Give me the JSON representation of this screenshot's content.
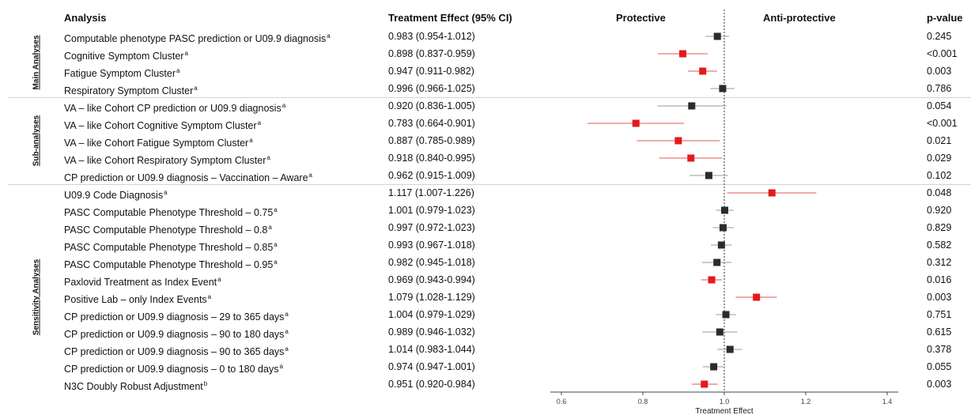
{
  "headers": {
    "analysis": "Analysis",
    "effect": "Treatment Effect (95% CI)",
    "protective": "Protective",
    "anti_protective": "Anti-protective",
    "pvalue": "p-value"
  },
  "sections": [
    {
      "label": "Main Analyses",
      "rows": [
        0,
        3
      ]
    },
    {
      "label": "Sub-analyses",
      "rows": [
        4,
        8
      ]
    },
    {
      "label": "Sensitivity Analyses",
      "rows": [
        9,
        21
      ]
    }
  ],
  "rows": [
    {
      "label": "Computable phenotype PASC prediction or U09.9 diagnosis",
      "sup": "a",
      "effect": "0.983 (0.954-1.012)",
      "p": "0.245"
    },
    {
      "label": "Cognitive Symptom Cluster",
      "sup": "a",
      "effect": "0.898 (0.837-0.959)",
      "p": "<0.001"
    },
    {
      "label": "Fatigue Symptom Cluster",
      "sup": "a",
      "effect": "0.947 (0.911-0.982)",
      "p": "0.003"
    },
    {
      "label": "Respiratory Symptom Cluster",
      "sup": "a",
      "effect": "0.996 (0.966-1.025)",
      "p": "0.786"
    },
    {
      "label": "VA – like Cohort CP prediction or U09.9 diagnosis",
      "sup": "a",
      "effect": "0.920 (0.836-1.005)",
      "p": "0.054"
    },
    {
      "label": "VA – like Cohort Cognitive Symptom Cluster",
      "sup": "a",
      "effect": "0.783 (0.664-0.901)",
      "p": "<0.001"
    },
    {
      "label": "VA – like Cohort Fatigue Symptom Cluster",
      "sup": "a",
      "effect": "0.887 (0.785-0.989)",
      "p": "0.021"
    },
    {
      "label": "VA – like Cohort Respiratory Symptom Cluster",
      "sup": "a",
      "effect": "0.918 (0.840-0.995)",
      "p": "0.029"
    },
    {
      "label": "CP prediction or U09.9 diagnosis – Vaccination – Aware",
      "sup": "a",
      "effect": "0.962 (0.915-1.009)",
      "p": "0.102"
    },
    {
      "label": "U09.9 Code Diagnosis",
      "sup": "a",
      "effect": "1.117 (1.007-1.226)",
      "p": "0.048"
    },
    {
      "label": "PASC Computable Phenotype Threshold – 0.75",
      "sup": "a",
      "effect": "1.001 (0.979-1.023)",
      "p": "0.920"
    },
    {
      "label": "PASC Computable Phenotype Threshold – 0.8",
      "sup": "a",
      "effect": "0.997 (0.972-1.023)",
      "p": "0.829"
    },
    {
      "label": "PASC Computable Phenotype Threshold – 0.85",
      "sup": "a",
      "effect": "0.993 (0.967-1.018)",
      "p": "0.582"
    },
    {
      "label": "PASC Computable Phenotype Threshold – 0.95",
      "sup": "a",
      "effect": "0.982 (0.945-1.018)",
      "p": "0.312"
    },
    {
      "label": "Paxlovid Treatment as Index Event",
      "sup": "a",
      "effect": "0.969 (0.943-0.994)",
      "p": "0.016"
    },
    {
      "label": "Positive Lab – only Index Events",
      "sup": "a",
      "effect": "1.079 (1.028-1.129)",
      "p": "0.003"
    },
    {
      "label": "CP prediction or U09.9 diagnosis – 29 to 365 days",
      "sup": "a",
      "effect": "1.004 (0.979-1.029)",
      "p": "0.751"
    },
    {
      "label": "CP prediction or U09.9 diagnosis – 90 to 180 days",
      "sup": "a",
      "effect": "0.989 (0.946-1.032)",
      "p": "0.615"
    },
    {
      "label": "CP prediction or U09.9 diagnosis – 90 to 365 days",
      "sup": "a",
      "effect": "1.014 (0.983-1.044)",
      "p": "0.378"
    },
    {
      "label": "CP prediction or U09.9 diagnosis – 0 to 180 days",
      "sup": "a",
      "effect": "0.974 (0.947-1.001)",
      "p": "0.055"
    },
    {
      "label": "N3C Doubly Robust Adjustment",
      "sup": "b",
      "effect": "0.951 (0.920-0.984)",
      "p": "0.003"
    }
  ],
  "colors": {
    "significant": "#e31a1c",
    "nonsignificant": "#2b2b2b",
    "ci_significant": "#e8554f",
    "ci_nonsignificant": "#9a9a9a"
  },
  "chart_data": {
    "type": "forest",
    "xlabel": "Treatment Effect",
    "xlim": [
      0.6,
      1.4
    ],
    "xticks": [
      "0.6",
      "0.8",
      "1.0",
      "1.2",
      "1.4"
    ],
    "reference_line": 1.0,
    "series": [
      {
        "est": 0.983,
        "lo": 0.954,
        "hi": 1.012,
        "significant": false
      },
      {
        "est": 0.898,
        "lo": 0.837,
        "hi": 0.959,
        "significant": true
      },
      {
        "est": 0.947,
        "lo": 0.911,
        "hi": 0.982,
        "significant": true
      },
      {
        "est": 0.996,
        "lo": 0.966,
        "hi": 1.025,
        "significant": false
      },
      {
        "est": 0.92,
        "lo": 0.836,
        "hi": 1.005,
        "significant": false
      },
      {
        "est": 0.783,
        "lo": 0.664,
        "hi": 0.901,
        "significant": true
      },
      {
        "est": 0.887,
        "lo": 0.785,
        "hi": 0.989,
        "significant": true
      },
      {
        "est": 0.918,
        "lo": 0.84,
        "hi": 0.995,
        "significant": true
      },
      {
        "est": 0.962,
        "lo": 0.915,
        "hi": 1.009,
        "significant": false
      },
      {
        "est": 1.117,
        "lo": 1.007,
        "hi": 1.226,
        "significant": true
      },
      {
        "est": 1.001,
        "lo": 0.979,
        "hi": 1.023,
        "significant": false
      },
      {
        "est": 0.997,
        "lo": 0.972,
        "hi": 1.023,
        "significant": false
      },
      {
        "est": 0.993,
        "lo": 0.967,
        "hi": 1.018,
        "significant": false
      },
      {
        "est": 0.982,
        "lo": 0.945,
        "hi": 1.018,
        "significant": false
      },
      {
        "est": 0.969,
        "lo": 0.943,
        "hi": 0.994,
        "significant": true
      },
      {
        "est": 1.079,
        "lo": 1.028,
        "hi": 1.129,
        "significant": true
      },
      {
        "est": 1.004,
        "lo": 0.979,
        "hi": 1.029,
        "significant": false
      },
      {
        "est": 0.989,
        "lo": 0.946,
        "hi": 1.032,
        "significant": false
      },
      {
        "est": 1.014,
        "lo": 0.983,
        "hi": 1.044,
        "significant": false
      },
      {
        "est": 0.974,
        "lo": 0.947,
        "hi": 1.001,
        "significant": false
      },
      {
        "est": 0.951,
        "lo": 0.92,
        "hi": 0.984,
        "significant": true
      }
    ]
  }
}
